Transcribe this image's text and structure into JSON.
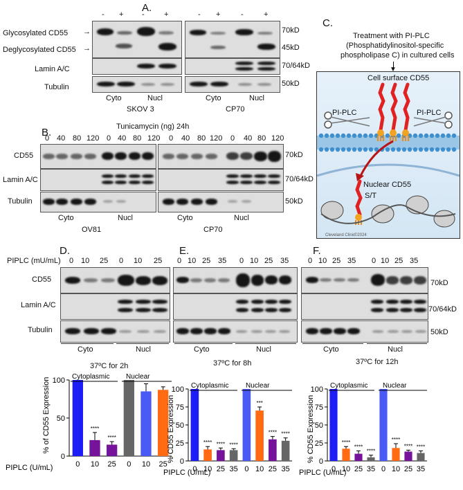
{
  "panels": {
    "A": "A.",
    "B": "B.",
    "C": "C.",
    "D": "D.",
    "E": "E.",
    "F": "F."
  },
  "a": {
    "lanes_left": [
      "-",
      "+",
      "-",
      "+"
    ],
    "lanes_right": [
      "-",
      "+",
      "-",
      "+"
    ],
    "glyco": "Glycosylated CD55",
    "deglyco": "Deglycosylated CD55",
    "lamin": "Lamin A/C",
    "tubulin": "Tubulin",
    "mw70": "70kD",
    "mw45": "45kD",
    "mw7064": "70/64kD",
    "mw50": "50kD",
    "cyto": "Cyto",
    "nucl": "Nucl",
    "cyto2": "Cyto",
    "nucl2": "Nucl",
    "cell1": "SKOV 3",
    "cell2": "CP70"
  },
  "b": {
    "header": "Tunicamycin (ng)",
    "time": "24h",
    "doses": [
      "0",
      "40",
      "80",
      "120",
      "0",
      "40",
      "80",
      "120"
    ],
    "doses2": [
      "0",
      "40",
      "80",
      "120",
      "0",
      "40",
      "80",
      "120"
    ],
    "cd55": "CD55",
    "lamin": "Lamin A/C",
    "tubulin": "Tubulin",
    "mw70": "70kD",
    "mw7064": "70/64kD",
    "mw50": "50kD",
    "cyto": "Cyto",
    "nucl": "Nucl",
    "cyto2": "Cyto",
    "nucl2": "Nucl",
    "cell1": "OV81",
    "cell2": "CP70"
  },
  "c": {
    "title1": "Treatment with PI-PLC",
    "title2": "(Phosphatidylinositol-specific",
    "title3": "phospholipase C) in cultured cells",
    "surface": "Cell surface CD55",
    "piplc_left": "PI-PLC",
    "piplc_right": "PI-PLC",
    "nuclear": "Nuclear CD55",
    "st": "S/T",
    "credit": "Cleveland Clinic",
    "credit_year": "©2024"
  },
  "d": {
    "unit": "PIPLC (mU/mL)",
    "doses": [
      "0",
      "10",
      "25",
      "0",
      "10",
      "25"
    ],
    "cd55": "CD55",
    "lamin": "Lamin A/C",
    "tubulin": "Tubulin",
    "cyto": "Cyto",
    "nucl": "Nucl",
    "cond": "37ºC for 2h"
  },
  "e": {
    "doses": [
      "0",
      "10",
      "25",
      "35",
      "0",
      "10",
      "25",
      "35"
    ],
    "cyto": "Cyto",
    "nucl": "Nucl",
    "cond": "37ºC for 8h"
  },
  "f": {
    "doses": [
      "0",
      "10",
      "25",
      "35",
      "0",
      "10",
      "25",
      "35"
    ],
    "cyto": "Cyto",
    "nucl": "Nucl",
    "cond": "37ºC for 12h",
    "mw70": "70kD",
    "mw7064": "70/64kD",
    "mw50": "50kD"
  },
  "chart_data": [
    {
      "type": "bar",
      "ylabel": "% of CD55 Expression",
      "xlabel": "PIPLC (U/mL)",
      "categories": [
        "0",
        "10",
        "25",
        "0",
        "10",
        "25"
      ],
      "groups": [
        "Cytoplasmic",
        "Nuclear"
      ],
      "values": [
        100,
        21,
        15,
        100,
        85,
        87
      ],
      "errors": [
        0,
        10,
        4,
        0,
        10,
        4
      ],
      "colors": [
        "#1f1ff5",
        "#7a0f9c",
        "#7a0f9c",
        "#6b6b6b",
        "#4a5cf5",
        "#ff6a13"
      ],
      "bar_colors": [
        "#1d1df6",
        "#75149b",
        "#75149b",
        "#666666",
        "#4a5af4",
        "#ff6a13"
      ],
      "sig": [
        "",
        "****",
        "****",
        "",
        "",
        ""
      ],
      "ylim": [
        0,
        100
      ],
      "yticks": [
        "0",
        "50",
        "100"
      ]
    },
    {
      "type": "bar",
      "ylabel": "% CD55 Expression",
      "xlabel": "PIPLC (U/mL)",
      "categories": [
        "0",
        "10",
        "25",
        "35",
        "0",
        "10",
        "25",
        "35"
      ],
      "groups": [
        "Cytoplasmic",
        "Nuclear"
      ],
      "values": [
        100,
        16,
        15,
        15,
        100,
        70,
        30,
        28
      ],
      "errors": [
        0,
        4,
        3,
        2,
        0,
        5,
        4,
        4
      ],
      "bar_colors": [
        "#1d1df6",
        "#ff6a13",
        "#75149b",
        "#666666",
        "#4a5af4",
        "#ff6a13",
        "#75149b",
        "#666666"
      ],
      "sig": [
        "",
        "****",
        "****",
        "****",
        "",
        "***",
        "****",
        "****"
      ],
      "ylim": [
        0,
        100
      ],
      "yticks": [
        "0",
        "25",
        "50",
        "75",
        "100"
      ]
    },
    {
      "type": "bar",
      "ylabel": "% CD55 Expression",
      "xlabel": "PIPLC (U/mL)",
      "categories": [
        "0",
        "10",
        "25",
        "35",
        "0",
        "10",
        "25",
        "35"
      ],
      "groups": [
        "Cytoplasmic",
        "Nuclear"
      ],
      "values": [
        100,
        17,
        10,
        5,
        100,
        18,
        13,
        11
      ],
      "errors": [
        0,
        3,
        4,
        3,
        0,
        6,
        2,
        3
      ],
      "bar_colors": [
        "#1d1df6",
        "#ff6a13",
        "#75149b",
        "#666666",
        "#4a5af4",
        "#ff6a13",
        "#75149b",
        "#666666"
      ],
      "sig": [
        "",
        "****",
        "****",
        "****",
        "",
        "****",
        "****",
        "****"
      ],
      "ylim": [
        0,
        100
      ],
      "yticks": [
        "0",
        "25",
        "50",
        "75",
        "100"
      ]
    }
  ]
}
